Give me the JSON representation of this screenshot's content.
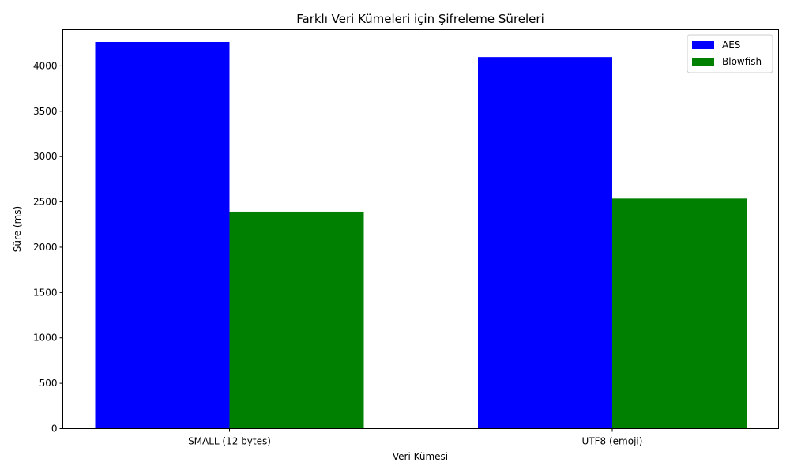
{
  "chart_data": {
    "type": "bar",
    "title": "Farklı Veri Kümeleri için Şifreleme Süreleri",
    "xlabel": "Veri Kümesi",
    "ylabel": "Süre (ms)",
    "categories": [
      "SMALL (12 bytes)",
      "UTF8 (emoji)"
    ],
    "series": [
      {
        "name": "AES",
        "color": "#0000ff",
        "values": [
          4265,
          4098
        ]
      },
      {
        "name": "Blowfish",
        "color": "#008000",
        "values": [
          2392,
          2537
        ]
      }
    ],
    "ylim": [
      0,
      4400
    ],
    "yticks": [
      0,
      500,
      1000,
      1500,
      2000,
      2500,
      3000,
      3500,
      4000
    ],
    "legend": "top-right",
    "grid": false
  }
}
